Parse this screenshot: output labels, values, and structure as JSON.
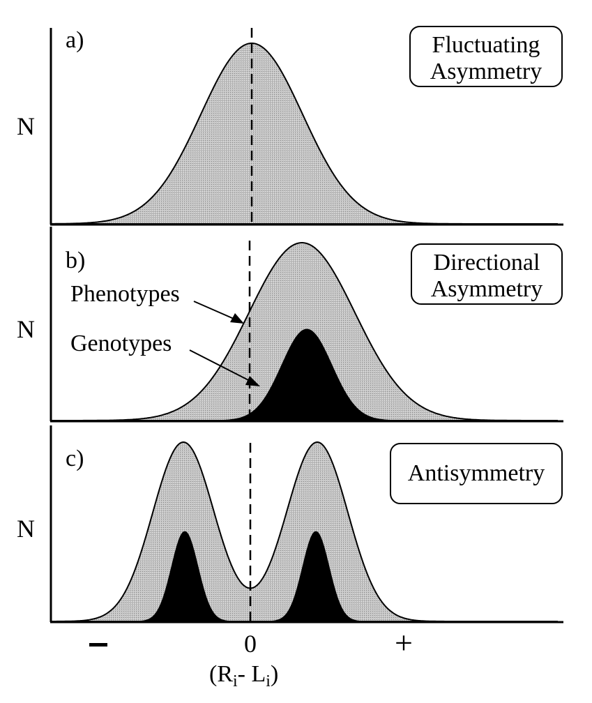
{
  "figure": {
    "y_axis_label": "N",
    "x_axis_label": "(R",
    "x_axis_sub_i": "i",
    "x_axis_dash": "- L",
    "x_axis_end": ")",
    "x_tick_minus": "−",
    "x_tick_zero": "0",
    "x_tick_plus": "+",
    "colors": {
      "phenotype_fill": "#bdbdbd",
      "genotype_fill": "#000000",
      "line": "#000000"
    }
  },
  "panels": [
    {
      "letter": "a)",
      "title_line1": "Fluctuating",
      "title_line2": "Asymmetry",
      "phenotype": {
        "distribution": "normal",
        "peaks": [
          0
        ],
        "relative_height": 1.0
      },
      "genotype": null
    },
    {
      "letter": "b)",
      "title_line1": "Directional",
      "title_line2": "Asymmetry",
      "annotation_phenotypes": "Phenotypes",
      "annotation_genotypes": "Genotypes",
      "phenotype": {
        "distribution": "normal",
        "peaks": [
          "shifted right of 0"
        ],
        "relative_height": 1.0
      },
      "genotype": {
        "distribution": "normal",
        "peaks": [
          "shifted right of 0"
        ],
        "relative_height": 0.5
      }
    },
    {
      "letter": "c)",
      "title_line1": "Antisymmetry",
      "phenotype": {
        "distribution": "bimodal",
        "peaks": [
          "left of 0",
          "right of 0"
        ],
        "relative_height": 1.0
      },
      "genotype": {
        "distribution": "bimodal",
        "peaks": [
          "left of 0",
          "right of 0"
        ],
        "relative_height": 0.5
      }
    }
  ]
}
